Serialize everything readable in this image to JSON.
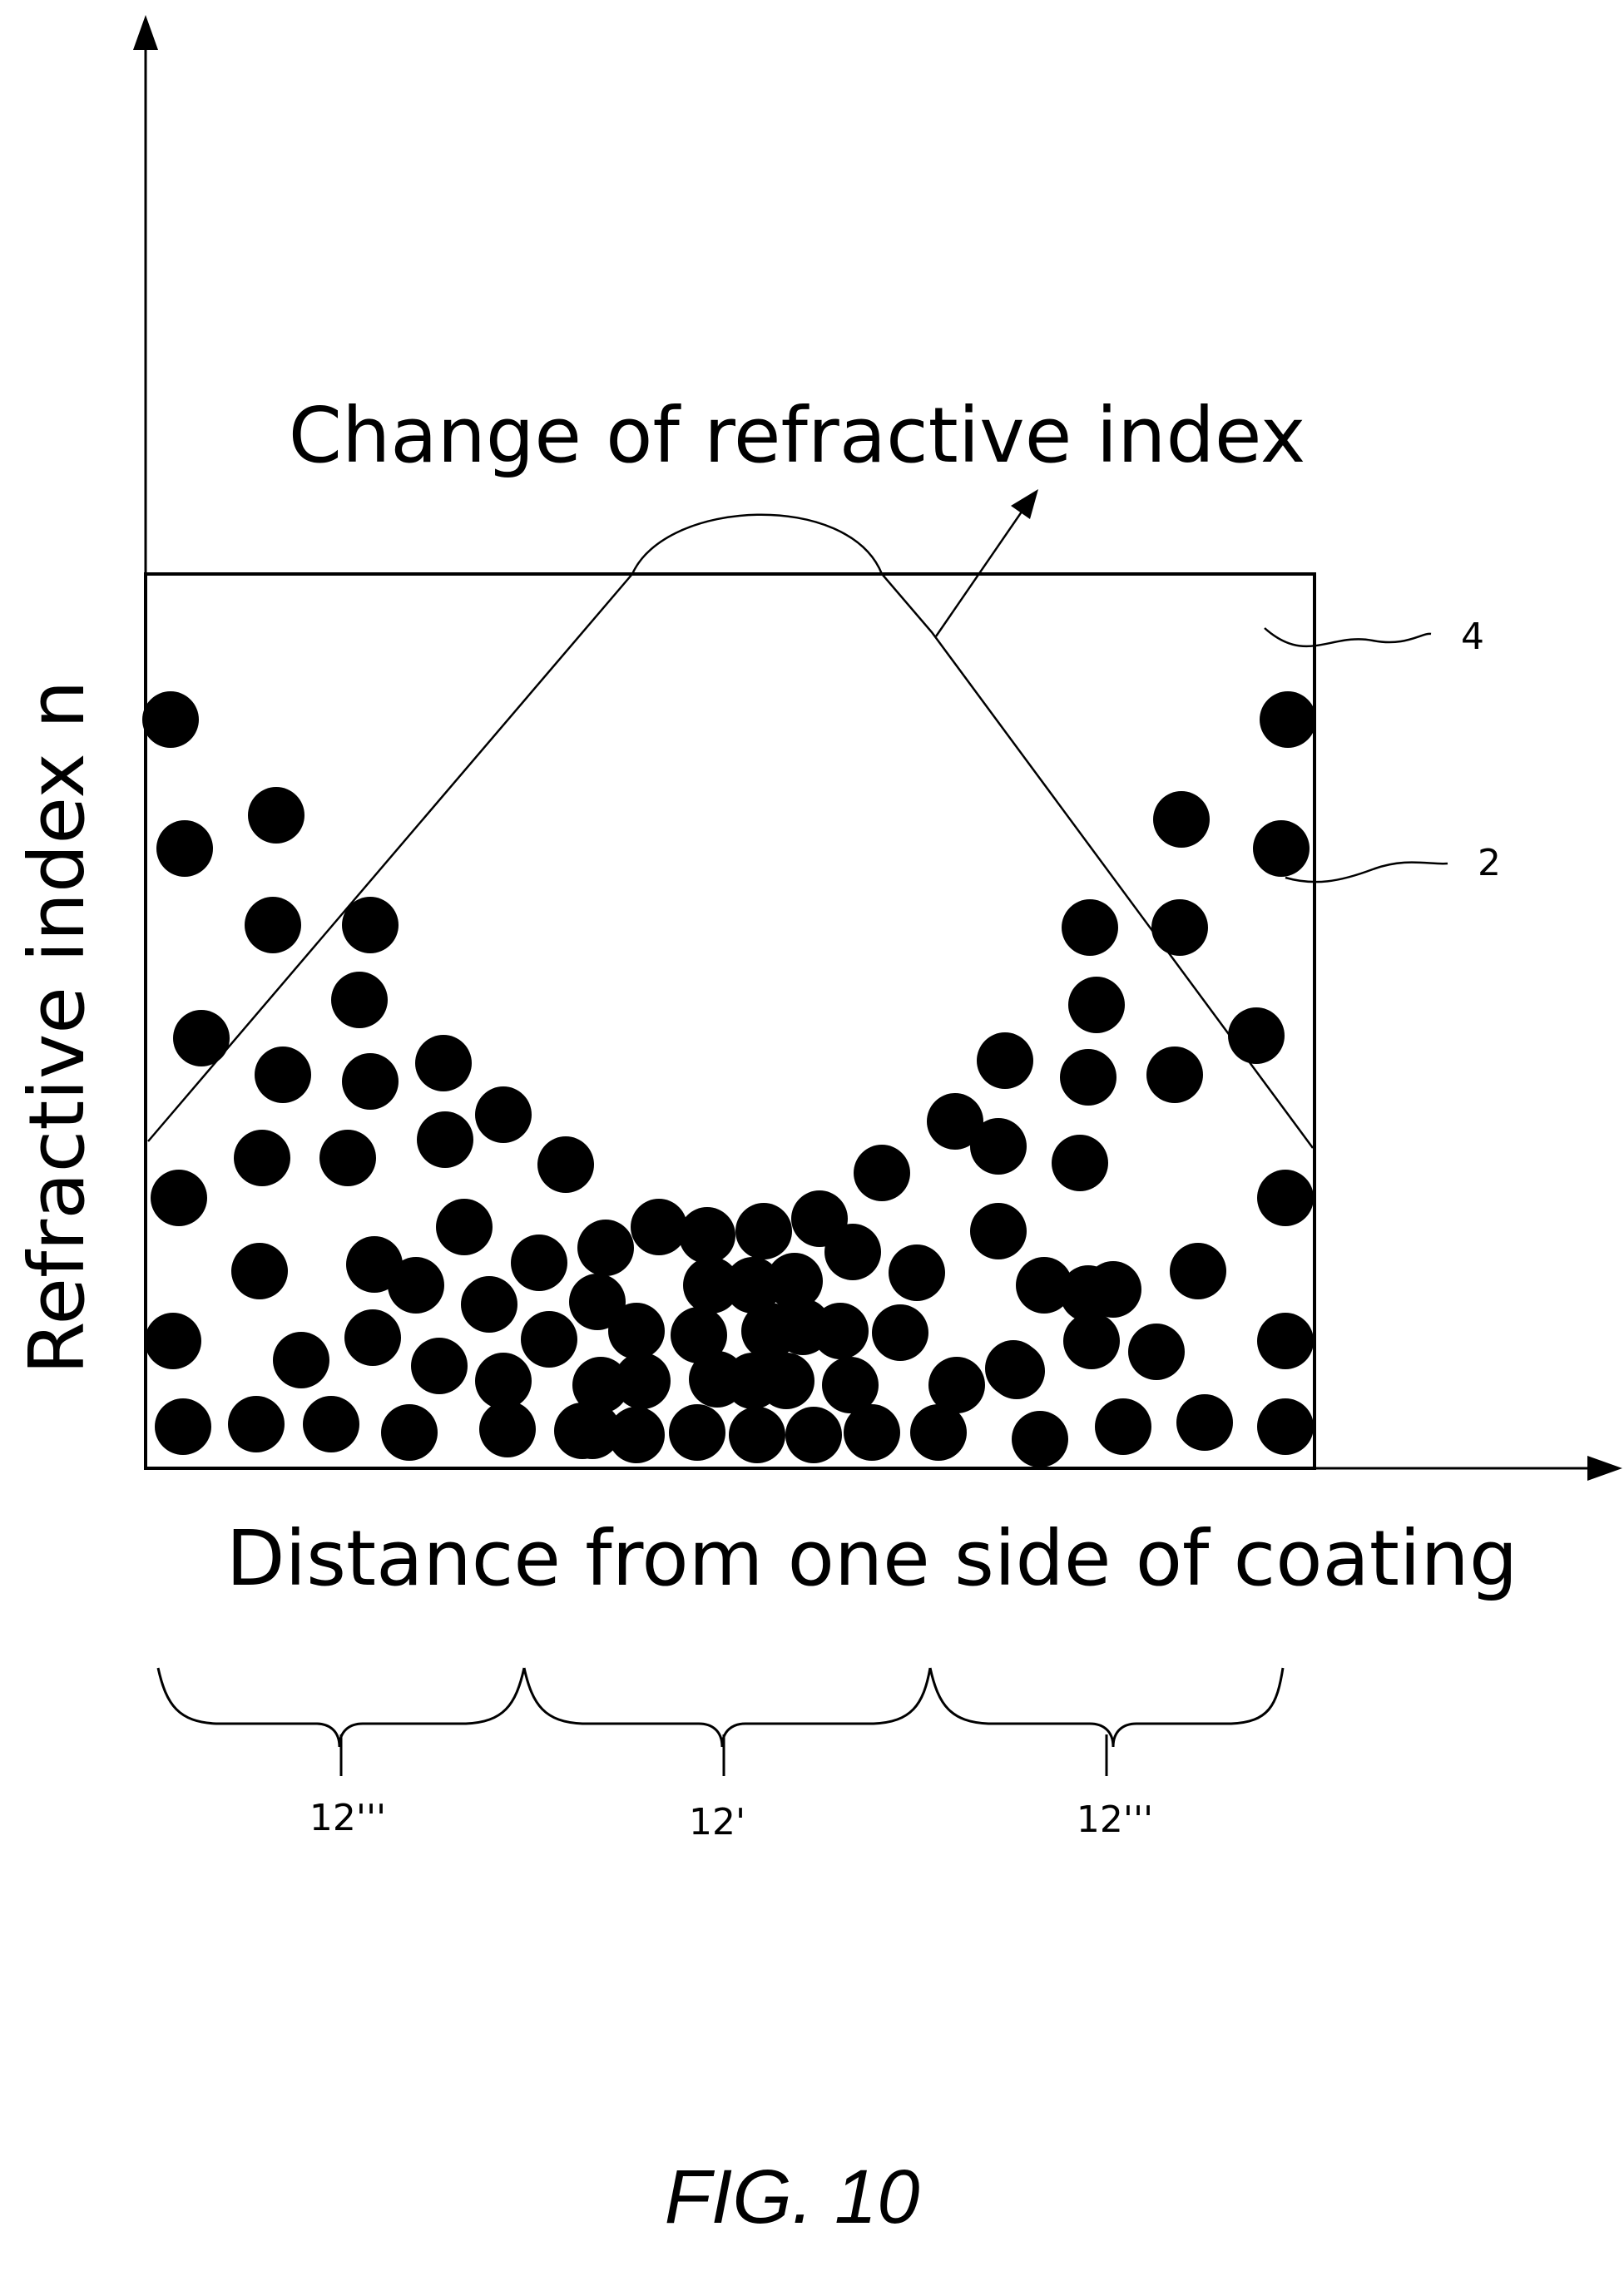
{
  "figure": {
    "title": "Change of refractive index",
    "y_axis_label": "Refractive index n",
    "x_axis_label": "Distance from one side of coating",
    "caption": "FIG. 10"
  },
  "reference_labels": {
    "coating_matrix": "4",
    "particles": "2",
    "region_left": "12'''",
    "region_middle": "12'",
    "region_right": "12'''"
  }
}
